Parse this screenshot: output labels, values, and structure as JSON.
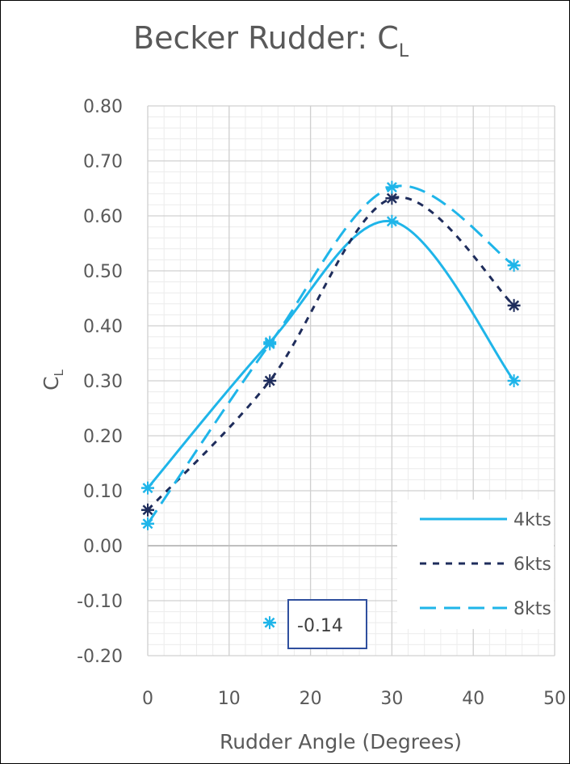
{
  "chart_data": {
    "type": "line",
    "title": "Becker Rudder: C",
    "title_subscript": "L",
    "xlabel": "Rudder Angle (Degrees)",
    "ylabel": "C",
    "ylabel_subscript": "L",
    "xlim": [
      0,
      50
    ],
    "ylim": [
      -0.2,
      0.8
    ],
    "x_major_step": 10,
    "y_major_step": 0.1,
    "x_tick_labels": [
      "0",
      "10",
      "20",
      "30",
      "40",
      "50"
    ],
    "y_tick_labels": [
      "-0.20",
      "-0.10",
      "0.00",
      "0.10",
      "0.20",
      "0.30",
      "0.40",
      "0.50",
      "0.60",
      "0.70",
      "0.80"
    ],
    "grid": true,
    "minor_grid": true,
    "legend_position": "bottom-right",
    "x": [
      0,
      15,
      30,
      45
    ],
    "series": [
      {
        "name": "4kts",
        "values": [
          0.105,
          0.37,
          0.59,
          0.3
        ],
        "color": "#1fb5e9",
        "dash": "solid",
        "marker": "asterisk"
      },
      {
        "name": "6kts",
        "values": [
          0.065,
          0.3,
          0.632,
          0.437
        ],
        "color": "#1f2d5c",
        "dash": "dashed",
        "marker": "asterisk"
      },
      {
        "name": "8kts",
        "values": [
          0.04,
          0.367,
          0.652,
          0.51
        ],
        "color": "#1fb5e9",
        "dash": "long-dash",
        "marker": "asterisk"
      }
    ],
    "annotation": {
      "text": "-0.14",
      "x": 15,
      "y": -0.14,
      "marker_color": "#1fb5e9",
      "box_color": "#2f4f9e"
    }
  }
}
